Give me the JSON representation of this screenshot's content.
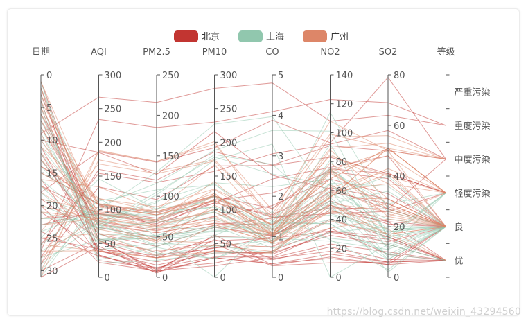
{
  "chart_data": {
    "type": "parallel",
    "legend": {
      "placement": "top-center",
      "items": [
        {
          "name": "北京",
          "color": "#c23531"
        },
        {
          "name": "上海",
          "color": "#91c7ae"
        },
        {
          "name": "广州",
          "color": "#dd8668"
        }
      ]
    },
    "axes": [
      {
        "name": "日期",
        "min": 0,
        "max": 31,
        "inverse": true,
        "ticks": [
          0,
          5,
          10,
          15,
          20,
          25,
          30
        ]
      },
      {
        "name": "AQI",
        "min": 0,
        "max": 300,
        "ticks": [
          0,
          50,
          100,
          150,
          200,
          250,
          300
        ]
      },
      {
        "name": "PM2.5",
        "min": 0,
        "max": 250,
        "ticks": [
          0,
          50,
          100,
          150,
          200,
          250
        ]
      },
      {
        "name": "PM10",
        "min": 0,
        "max": 300,
        "ticks": [
          0,
          50,
          100,
          150,
          200,
          250,
          300
        ]
      },
      {
        "name": "CO",
        "min": 0,
        "max": 5,
        "ticks": [
          0,
          1,
          2,
          3,
          4,
          5
        ]
      },
      {
        "name": "NO2",
        "min": 0,
        "max": 140,
        "ticks": [
          0,
          20,
          40,
          60,
          80,
          100,
          120,
          140
        ]
      },
      {
        "name": "SO2",
        "min": 0,
        "max": 80,
        "ticks": [
          0,
          20,
          40,
          60,
          80
        ]
      },
      {
        "name": "等级",
        "categorical": true,
        "categories": [
          "优",
          "良",
          "轻度污染",
          "中度污染",
          "重度污染",
          "严重污染"
        ]
      }
    ],
    "series": [
      {
        "name": "北京",
        "color": "#c23531",
        "data": [
          [
            1,
            55,
            9,
            56,
            0.46,
            18,
            6,
            "良"
          ],
          [
            2,
            25,
            11,
            21,
            0.65,
            34,
            9,
            "优"
          ],
          [
            3,
            56,
            7,
            63,
            0.3,
            14,
            5,
            "良"
          ],
          [
            4,
            33,
            7,
            29,
            0.33,
            16,
            6,
            "优"
          ],
          [
            5,
            42,
            24,
            44,
            0.76,
            40,
            16,
            "优"
          ],
          [
            6,
            82,
            58,
            90,
            1.77,
            68,
            33,
            "良"
          ],
          [
            7,
            74,
            49,
            77,
            1.46,
            48,
            27,
            "良"
          ],
          [
            8,
            78,
            55,
            80,
            1.29,
            59,
            29,
            "良"
          ],
          [
            9,
            267,
            216,
            280,
            4.8,
            108,
            64,
            "重度污染"
          ],
          [
            10,
            185,
            127,
            216,
            2.52,
            61,
            27,
            "中度污染"
          ],
          [
            11,
            39,
            19,
            38,
            0.57,
            31,
            15,
            "优"
          ],
          [
            12,
            41,
            11,
            40,
            0.43,
            21,
            7,
            "优"
          ],
          [
            13,
            64,
            38,
            74,
            1.04,
            46,
            22,
            "良"
          ],
          [
            14,
            108,
            79,
            120,
            1.7,
            75,
            41,
            "轻度污染"
          ],
          [
            15,
            108,
            63,
            116,
            1.48,
            44,
            26,
            "轻度污染"
          ],
          [
            16,
            33,
            6,
            29,
            0.34,
            13,
            5,
            "优"
          ],
          [
            17,
            94,
            66,
            110,
            1.54,
            62,
            31,
            "良"
          ],
          [
            18,
            186,
            142,
            192,
            3.88,
            93,
            79,
            "中度污染"
          ],
          [
            19,
            57,
            31,
            54,
            0.96,
            32,
            14,
            "良"
          ],
          [
            20,
            22,
            8,
            17,
            0.48,
            23,
            10,
            "优"
          ],
          [
            21,
            39,
            15,
            36,
            0.61,
            29,
            13,
            "优"
          ],
          [
            22,
            94,
            69,
            114,
            2.08,
            73,
            39,
            "良"
          ],
          [
            23,
            99,
            73,
            110,
            2.43,
            76,
            48,
            "良"
          ],
          [
            24,
            31,
            12,
            30,
            0.5,
            32,
            16,
            "优"
          ],
          [
            25,
            42,
            27,
            43,
            1,
            53,
            22,
            "优"
          ],
          [
            26,
            154,
            117,
            157,
            3.05,
            92,
            58,
            "中度污染"
          ],
          [
            27,
            234,
            185,
            230,
            4.09,
            123,
            69,
            "重度污染"
          ],
          [
            28,
            160,
            120,
            186,
            2.77,
            91,
            50,
            "中度污染"
          ],
          [
            29,
            134,
            96,
            165,
            2.76,
            83,
            41,
            "轻度污染"
          ],
          [
            30,
            52,
            24,
            60,
            1.03,
            50,
            21,
            "良"
          ],
          [
            31,
            46,
            5,
            49,
            0.28,
            10,
            6,
            "优"
          ]
        ]
      },
      {
        "name": "上海",
        "color": "#91c7ae",
        "data": [
          [
            1,
            26,
            37,
            27,
            1.163,
            27,
            13,
            "优"
          ],
          [
            2,
            85,
            62,
            71,
            1.195,
            60,
            8,
            "良"
          ],
          [
            3,
            78,
            38,
            74,
            1.363,
            37,
            7,
            "良"
          ],
          [
            4,
            21,
            21,
            36,
            0.634,
            40,
            9,
            "优"
          ],
          [
            5,
            41,
            42,
            46,
            0.915,
            81,
            13,
            "优"
          ],
          [
            6,
            56,
            52,
            69,
            1.067,
            92,
            16,
            "良"
          ],
          [
            7,
            64,
            30,
            28,
            0.924,
            51,
            2,
            "良"
          ],
          [
            8,
            55,
            48,
            74,
            1.236,
            75,
            26,
            "良"
          ],
          [
            9,
            76,
            85,
            113,
            1.237,
            114,
            27,
            "良"
          ],
          [
            10,
            91,
            81,
            104,
            1.041,
            56,
            40,
            "良"
          ],
          [
            11,
            84,
            39,
            60,
            0.964,
            25,
            11,
            "良"
          ],
          [
            12,
            64,
            51,
            101,
            0.862,
            58,
            23,
            "良"
          ],
          [
            13,
            70,
            69,
            120,
            1.198,
            65,
            36,
            "良"
          ],
          [
            14,
            77,
            105,
            178,
            2.549,
            64,
            16,
            "良"
          ],
          [
            15,
            109,
            68,
            87,
            0.996,
            74,
            29,
            "轻度污染"
          ],
          [
            16,
            73,
            68,
            97,
            0.905,
            51,
            34,
            "良"
          ],
          [
            17,
            54,
            27,
            47,
            0.592,
            53,
            12,
            "良"
          ],
          [
            18,
            51,
            61,
            97,
            0.811,
            65,
            19,
            "良"
          ],
          [
            19,
            91,
            71,
            121,
            1.374,
            43,
            18,
            "良"
          ],
          [
            20,
            73,
            102,
            182,
            2.787,
            44,
            19,
            "良"
          ],
          [
            21,
            73,
            50,
            76,
            0.717,
            31,
            20,
            "良"
          ],
          [
            22,
            84,
            94,
            140,
            2.238,
            68,
            18,
            "良"
          ],
          [
            23,
            93,
            77,
            104,
            1.165,
            53,
            7,
            "良"
          ],
          [
            24,
            99,
            130,
            227,
            3.97,
            55,
            15,
            "良"
          ],
          [
            25,
            146,
            84,
            139,
            1.094,
            40,
            17,
            "轻度污染"
          ],
          [
            26,
            113,
            108,
            137,
            1.481,
            48,
            15,
            "轻度污染"
          ],
          [
            27,
            81,
            48,
            62,
            1.619,
            26,
            3,
            "良"
          ],
          [
            28,
            56,
            48,
            68,
            1.336,
            37,
            9,
            "良"
          ],
          [
            29,
            82,
            92,
            174,
            3.29,
            0,
            13,
            "良"
          ],
          [
            30,
            106,
            116,
            188,
            3.628,
            101,
            16,
            "轻度污染"
          ],
          [
            31,
            118,
            50,
            0,
            1.383,
            76,
            11,
            "轻度污染"
          ]
        ]
      },
      {
        "name": "广州",
        "color": "#dd8668",
        "data": [
          [
            1,
            91,
            45,
            125,
            0.82,
            34,
            23,
            "良"
          ],
          [
            2,
            65,
            27,
            78,
            0.86,
            45,
            29,
            "良"
          ],
          [
            3,
            83,
            60,
            84,
            1.09,
            73,
            27,
            "良"
          ],
          [
            4,
            109,
            81,
            121,
            1.28,
            68,
            51,
            "轻度污染"
          ],
          [
            5,
            106,
            77,
            114,
            1.07,
            55,
            51,
            "轻度污染"
          ],
          [
            6,
            109,
            81,
            121,
            1.28,
            68,
            51,
            "轻度污染"
          ],
          [
            7,
            106,
            77,
            114,
            1.07,
            55,
            51,
            "轻度污染"
          ],
          [
            8,
            89,
            65,
            78,
            0.86,
            51,
            26,
            "良"
          ],
          [
            9,
            53,
            33,
            47,
            0.64,
            50,
            17,
            "良"
          ],
          [
            10,
            80,
            55,
            80,
            1.01,
            75,
            24,
            "良"
          ],
          [
            11,
            117,
            81,
            124,
            1.03,
            45,
            24,
            "轻度污染"
          ],
          [
            12,
            99,
            71,
            142,
            1.1,
            62,
            42,
            "良"
          ],
          [
            13,
            95,
            69,
            130,
            1.28,
            74,
            50,
            "良"
          ],
          [
            14,
            116,
            87,
            131,
            1.47,
            84,
            40,
            "轻度污染"
          ],
          [
            15,
            108,
            80,
            121,
            1.3,
            85,
            37,
            "轻度污染"
          ],
          [
            16,
            134,
            83,
            167,
            1.16,
            57,
            43,
            "轻度污染"
          ],
          [
            17,
            79,
            43,
            107,
            1.05,
            59,
            37,
            "良"
          ],
          [
            18,
            71,
            46,
            89,
            0.86,
            64,
            25,
            "良"
          ],
          [
            19,
            97,
            71,
            113,
            1.17,
            88,
            31,
            "良"
          ],
          [
            20,
            84,
            57,
            91,
            0.85,
            55,
            31,
            "良"
          ],
          [
            21,
            87,
            63,
            101,
            0.9,
            56,
            41,
            "良"
          ],
          [
            22,
            104,
            77,
            119,
            1.09,
            73,
            48,
            "轻度污染"
          ],
          [
            23,
            87,
            62,
            100,
            1,
            72,
            28,
            "良"
          ],
          [
            24,
            168,
            128,
            172,
            1.49,
            97,
            56,
            "中度污染"
          ],
          [
            25,
            65,
            45,
            51,
            0.74,
            39,
            17,
            "良"
          ],
          [
            26,
            39,
            24,
            38,
            0.61,
            47,
            17,
            "优"
          ],
          [
            27,
            39,
            24,
            39,
            0.59,
            50,
            19,
            "优"
          ],
          [
            28,
            93,
            68,
            96,
            1.05,
            79,
            29,
            "良"
          ],
          [
            29,
            188,
            143,
            197,
            1.66,
            99,
            51,
            "中度污染"
          ],
          [
            30,
            174,
            131,
            174,
            1.55,
            108,
            50,
            "中度污染"
          ],
          [
            31,
            187,
            143,
            201,
            1.39,
            89,
            53,
            "中度污染"
          ]
        ]
      }
    ]
  },
  "watermark": "https://blog.csdn.net/weixin_43294560"
}
